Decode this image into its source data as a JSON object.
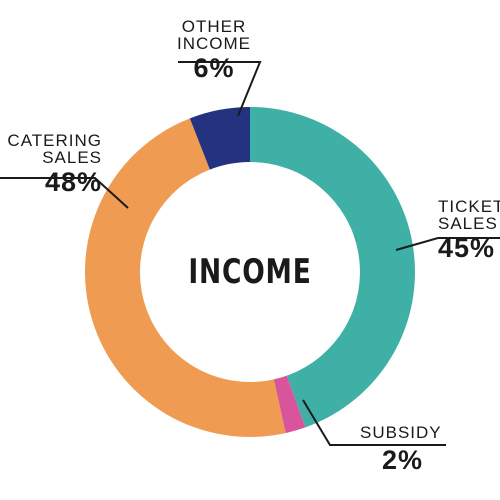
{
  "chart_data": {
    "type": "donut",
    "center_label": "INCOME",
    "slices": [
      {
        "key": "ticket",
        "name_lines": [
          "TICKET",
          "SALES"
        ],
        "label": "45%",
        "value": 45,
        "color": "#3fb0a6"
      },
      {
        "key": "subsidy",
        "name_lines": [
          "SUBSIDY"
        ],
        "label": "2%",
        "value": 2,
        "color": "#d9559b"
      },
      {
        "key": "catering",
        "name_lines": [
          "CATERING",
          "SALES"
        ],
        "label": "48%",
        "value": 48,
        "color": "#ef9b52"
      },
      {
        "key": "other",
        "name_lines": [
          "OTHER",
          "INCOME"
        ],
        "label": "6%",
        "value": 6,
        "color": "#23337f"
      }
    ]
  }
}
